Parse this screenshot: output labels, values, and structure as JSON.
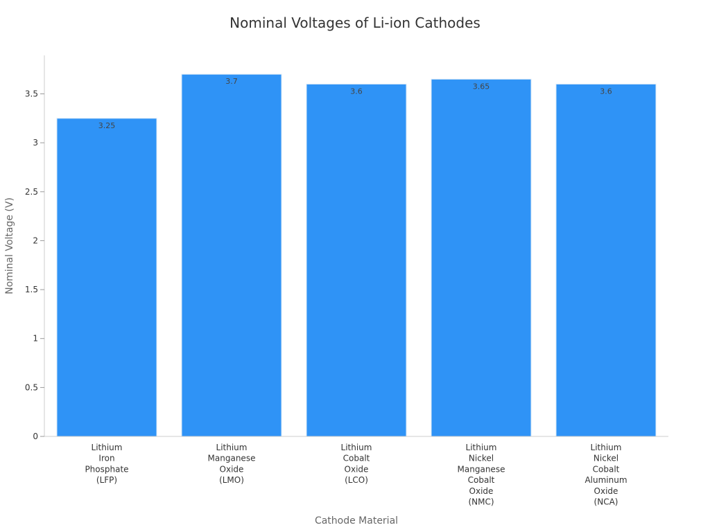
{
  "chart_data": {
    "type": "bar",
    "title": "Nominal Voltages of Li-ion Cathodes",
    "xlabel": "Cathode Material",
    "ylabel": "Nominal Voltage (V)",
    "categories": [
      "Lithium Iron Phosphate (LFP)",
      "Lithium Manganese Oxide (LMO)",
      "Lithium Cobalt Oxide (LCO)",
      "Lithium Nickel Manganese Cobalt Oxide (NMC)",
      "Lithium Nickel Cobalt Aluminum Oxide (NCA)"
    ],
    "category_lines": [
      [
        "Lithium",
        "Iron",
        "Phosphate",
        "(LFP)"
      ],
      [
        "Lithium",
        "Manganese",
        "Oxide",
        "(LMO)"
      ],
      [
        "Lithium",
        "Cobalt",
        "Oxide",
        "(LCO)"
      ],
      [
        "Lithium",
        "Nickel",
        "Manganese",
        "Cobalt",
        "Oxide",
        "(NMC)"
      ],
      [
        "Lithium",
        "Nickel",
        "Cobalt",
        "Aluminum",
        "Oxide",
        "(NCA)"
      ]
    ],
    "values": [
      3.25,
      3.7,
      3.6,
      3.65,
      3.6
    ],
    "data_labels": [
      "3.25",
      "3.7",
      "3.6",
      "3.65",
      "3.6"
    ],
    "ylim": [
      0,
      3.9
    ],
    "yticks": [
      0,
      0.5,
      1,
      1.5,
      2,
      2.5,
      3,
      3.5
    ],
    "ytick_labels": [
      "0",
      "0.5",
      "1",
      "1.5",
      "2",
      "2.5",
      "3",
      "3.5"
    ],
    "bar_color": "#2f93f6",
    "grid": false,
    "legend": "none"
  }
}
